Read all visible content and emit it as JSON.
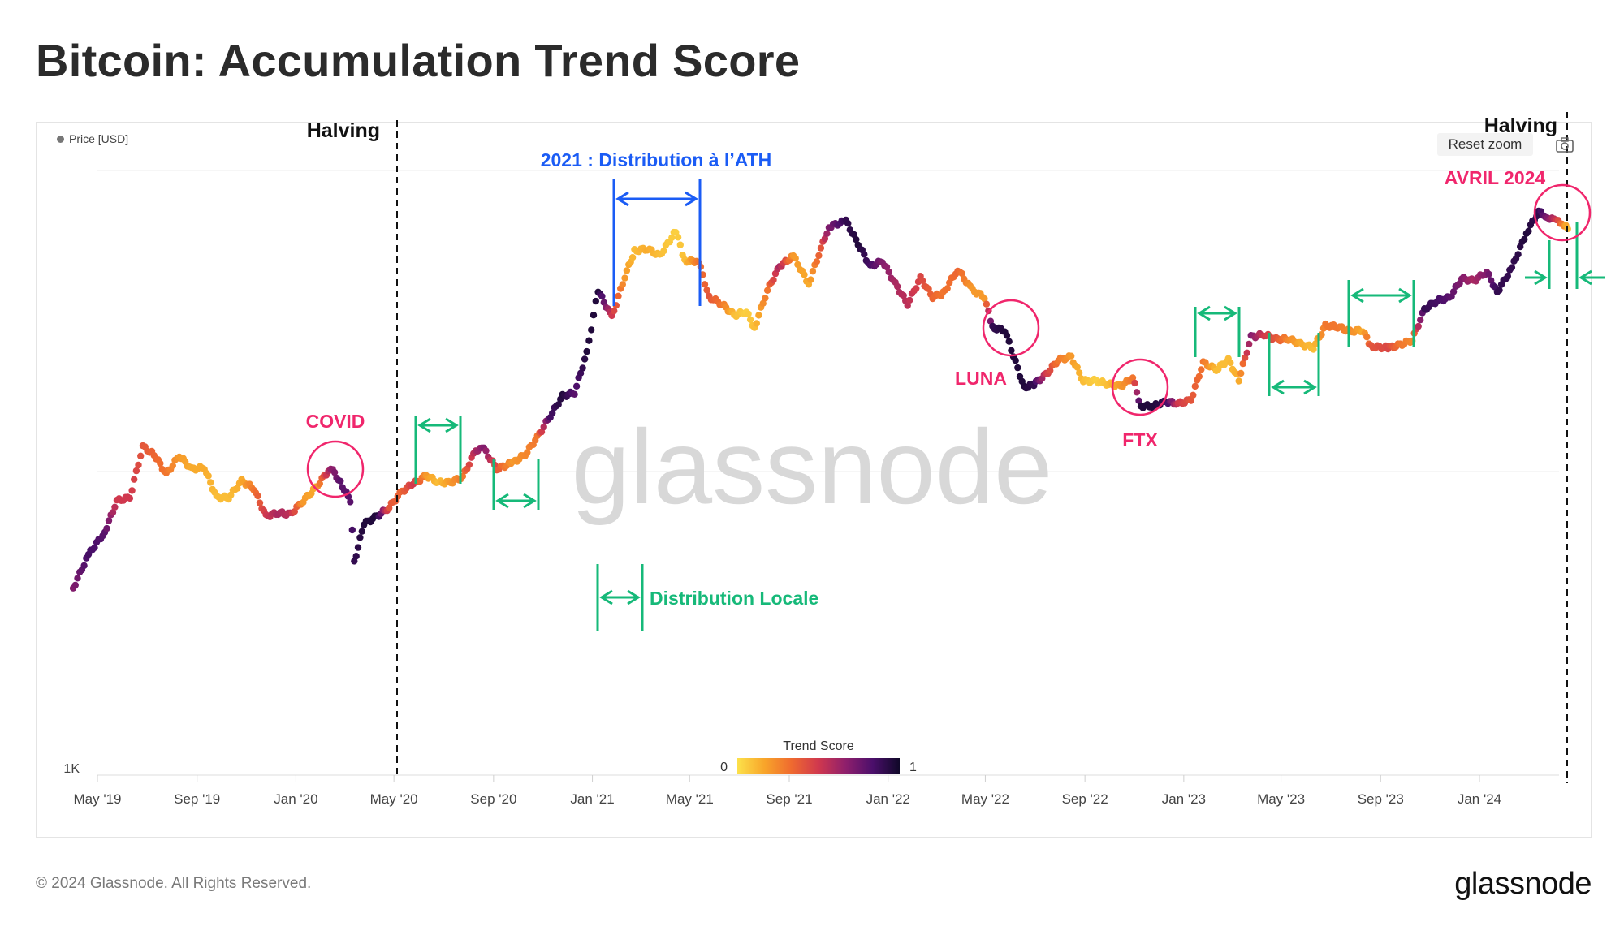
{
  "title": "Bitcoin: Accumulation Trend Score",
  "legend": {
    "series_label": "Price [USD]",
    "reset_zoom": "Reset zoom"
  },
  "footer": {
    "copyright": "© 2024 Glassnode. All Rights Reserved.",
    "brand": "glassnode"
  },
  "watermark": "glassnode",
  "colorbar": {
    "title": "Trend Score",
    "min_label": "0",
    "max_label": "1",
    "colors": [
      "#fce14a",
      "#f8a52a",
      "#ef6a2f",
      "#d0384e",
      "#8f1f6c",
      "#4b0f6b",
      "#0f0828"
    ]
  },
  "annotation_colors": {
    "green": "#16b979",
    "blue": "#1b5cf5",
    "pink": "#f0266c",
    "black": "#111111"
  },
  "chart_data": {
    "type": "scatter",
    "title": "Bitcoin: Accumulation Trend Score",
    "y_scale": "log",
    "y_tick_labels": [
      "1K"
    ],
    "x_tick_labels": [
      "May '19",
      "Sep '19",
      "Jan '20",
      "May '20",
      "Sep '20",
      "Jan '21",
      "May '21",
      "Sep '21",
      "Jan '22",
      "May '22",
      "Sep '22",
      "Jan '23",
      "May '23",
      "Sep '23",
      "Jan '24"
    ],
    "grid": true,
    "color_encoding": "Trend Score",
    "series": [
      {
        "name": "Price [USD]",
        "points": [
          [
            "2019-04-01",
            4100,
            0.7
          ],
          [
            "2019-04-20",
            5300,
            0.85
          ],
          [
            "2019-05-10",
            6300,
            0.8
          ],
          [
            "2019-05-25",
            8000,
            0.5
          ],
          [
            "2019-06-10",
            8200,
            0.5
          ],
          [
            "2019-06-26",
            12100,
            0.4
          ],
          [
            "2019-07-10",
            11400,
            0.35
          ],
          [
            "2019-07-25",
            9800,
            0.3
          ],
          [
            "2019-08-10",
            11300,
            0.2
          ],
          [
            "2019-08-25",
            10200,
            0.15
          ],
          [
            "2019-09-10",
            10300,
            0.15
          ],
          [
            "2019-09-25",
            8200,
            0.1
          ],
          [
            "2019-10-10",
            8200,
            0.1
          ],
          [
            "2019-10-26",
            9300,
            0.15
          ],
          [
            "2019-11-10",
            8800,
            0.3
          ],
          [
            "2019-11-25",
            7100,
            0.5
          ],
          [
            "2019-12-10",
            7300,
            0.6
          ],
          [
            "2019-12-25",
            7200,
            0.55
          ],
          [
            "2020-01-10",
            8000,
            0.2
          ],
          [
            "2020-01-25",
            8800,
            0.15
          ],
          [
            "2020-02-13",
            10300,
            0.65
          ],
          [
            "2020-02-25",
            9200,
            0.8
          ],
          [
            "2020-03-08",
            8000,
            0.8
          ],
          [
            "2020-03-13",
            5000,
            0.9
          ],
          [
            "2020-03-25",
            6700,
            0.95
          ],
          [
            "2020-04-10",
            7100,
            0.95
          ],
          [
            "2020-04-25",
            7600,
            0.4
          ],
          [
            "2020-05-11",
            8600,
            0.35
          ],
          [
            "2020-05-25",
            9100,
            0.5
          ],
          [
            "2020-06-10",
            9700,
            0.2
          ],
          [
            "2020-06-25",
            9200,
            0.1
          ],
          [
            "2020-07-10",
            9200,
            0.2
          ],
          [
            "2020-07-25",
            9600,
            0.3
          ],
          [
            "2020-08-10",
            11800,
            0.6
          ],
          [
            "2020-08-20",
            11900,
            0.7
          ],
          [
            "2020-09-05",
            10200,
            0.4
          ],
          [
            "2020-09-25",
            10700,
            0.2
          ],
          [
            "2020-10-10",
            11400,
            0.25
          ],
          [
            "2020-10-25",
            13000,
            0.3
          ],
          [
            "2020-11-10",
            15300,
            0.85
          ],
          [
            "2020-11-25",
            17800,
            0.95
          ],
          [
            "2020-12-10",
            18300,
            0.8
          ],
          [
            "2020-12-25",
            24700,
            0.95
          ],
          [
            "2021-01-08",
            40000,
            0.95
          ],
          [
            "2021-01-25",
            32500,
            0.5
          ],
          [
            "2021-02-10",
            44500,
            0.2
          ],
          [
            "2021-02-22",
            54000,
            0.1
          ],
          [
            "2021-03-10",
            55000,
            0.15
          ],
          [
            "2021-03-25",
            52000,
            0.1
          ],
          [
            "2021-04-14",
            63000,
            0.05
          ],
          [
            "2021-04-25",
            50000,
            0.1
          ],
          [
            "2021-05-12",
            50000,
            0.3
          ],
          [
            "2021-05-25",
            38000,
            0.4
          ],
          [
            "2021-06-10",
            36000,
            0.3
          ],
          [
            "2021-06-25",
            33000,
            0.1
          ],
          [
            "2021-07-10",
            34000,
            0.05
          ],
          [
            "2021-07-20",
            30000,
            0.1
          ],
          [
            "2021-08-05",
            40000,
            0.3
          ],
          [
            "2021-08-20",
            48000,
            0.6
          ],
          [
            "2021-09-06",
            52000,
            0.2
          ],
          [
            "2021-09-25",
            42000,
            0.15
          ],
          [
            "2021-10-10",
            55000,
            0.4
          ],
          [
            "2021-10-20",
            65000,
            0.7
          ],
          [
            "2021-11-10",
            68000,
            0.9
          ],
          [
            "2021-11-25",
            57000,
            0.95
          ],
          [
            "2021-12-10",
            48000,
            0.85
          ],
          [
            "2021-12-25",
            50000,
            0.7
          ],
          [
            "2022-01-10",
            42000,
            0.6
          ],
          [
            "2022-01-25",
            36000,
            0.55
          ],
          [
            "2022-02-10",
            44000,
            0.45
          ],
          [
            "2022-02-25",
            38000,
            0.35
          ],
          [
            "2022-03-10",
            39000,
            0.3
          ],
          [
            "2022-03-28",
            47000,
            0.35
          ],
          [
            "2022-04-15",
            40000,
            0.2
          ],
          [
            "2022-04-30",
            38000,
            0.2
          ],
          [
            "2022-05-10",
            30000,
            0.9
          ],
          [
            "2022-05-25",
            29500,
            0.95
          ],
          [
            "2022-06-18",
            19000,
            0.95
          ],
          [
            "2022-06-30",
            19500,
            0.9
          ],
          [
            "2022-07-15",
            21000,
            0.5
          ],
          [
            "2022-07-30",
            23500,
            0.3
          ],
          [
            "2022-08-15",
            24000,
            0.2
          ],
          [
            "2022-08-30",
            20000,
            0.1
          ],
          [
            "2022-09-15",
            20000,
            0.05
          ],
          [
            "2022-09-30",
            19500,
            0.1
          ],
          [
            "2022-10-15",
            19200,
            0.2
          ],
          [
            "2022-10-30",
            20500,
            0.3
          ],
          [
            "2022-11-09",
            16500,
            0.95
          ],
          [
            "2022-11-25",
            16500,
            0.95
          ],
          [
            "2022-12-10",
            17100,
            0.9
          ],
          [
            "2022-12-25",
            16800,
            0.5
          ],
          [
            "2023-01-10",
            17300,
            0.4
          ],
          [
            "2023-01-25",
            23000,
            0.3
          ],
          [
            "2023-02-10",
            21800,
            0.1
          ],
          [
            "2023-02-25",
            23500,
            0.1
          ],
          [
            "2023-03-10",
            20200,
            0.15
          ],
          [
            "2023-03-25",
            28000,
            0.7
          ],
          [
            "2023-04-10",
            28500,
            0.5
          ],
          [
            "2023-04-25",
            27500,
            0.4
          ],
          [
            "2023-05-10",
            27600,
            0.25
          ],
          [
            "2023-05-25",
            26500,
            0.15
          ],
          [
            "2023-06-10",
            25800,
            0.1
          ],
          [
            "2023-06-25",
            30500,
            0.3
          ],
          [
            "2023-07-10",
            30300,
            0.3
          ],
          [
            "2023-07-25",
            29200,
            0.25
          ],
          [
            "2023-08-10",
            29500,
            0.15
          ],
          [
            "2023-08-20",
            26000,
            0.4
          ],
          [
            "2023-09-10",
            25800,
            0.45
          ],
          [
            "2023-09-25",
            26300,
            0.3
          ],
          [
            "2023-10-10",
            27400,
            0.25
          ],
          [
            "2023-10-25",
            34500,
            0.9
          ],
          [
            "2023-11-10",
            37000,
            0.85
          ],
          [
            "2023-11-25",
            37700,
            0.8
          ],
          [
            "2023-12-10",
            43800,
            0.7
          ],
          [
            "2023-12-25",
            43000,
            0.6
          ],
          [
            "2024-01-10",
            46000,
            0.7
          ],
          [
            "2024-01-23",
            39500,
            0.9
          ],
          [
            "2024-02-10",
            47500,
            0.9
          ],
          [
            "2024-02-28",
            62000,
            0.95
          ],
          [
            "2024-03-14",
            73000,
            0.9
          ],
          [
            "2024-03-25",
            70000,
            0.7
          ],
          [
            "2024-04-05",
            68000,
            0.5
          ],
          [
            "2024-04-12",
            67000,
            0.3
          ],
          [
            "2024-04-19",
            64000,
            0.1
          ]
        ]
      }
    ],
    "annotations": [
      {
        "text": "Halving",
        "date": "2020-05-11"
      },
      {
        "text": "Halving",
        "date": "2024-04-19"
      },
      {
        "text": "2021 : Distribution à l’ATH"
      },
      {
        "text": "Distribution Locale"
      },
      {
        "text": "COVID"
      },
      {
        "text": "LUNA"
      },
      {
        "text": "FTX"
      },
      {
        "text": "AVRIL 2024"
      }
    ]
  }
}
